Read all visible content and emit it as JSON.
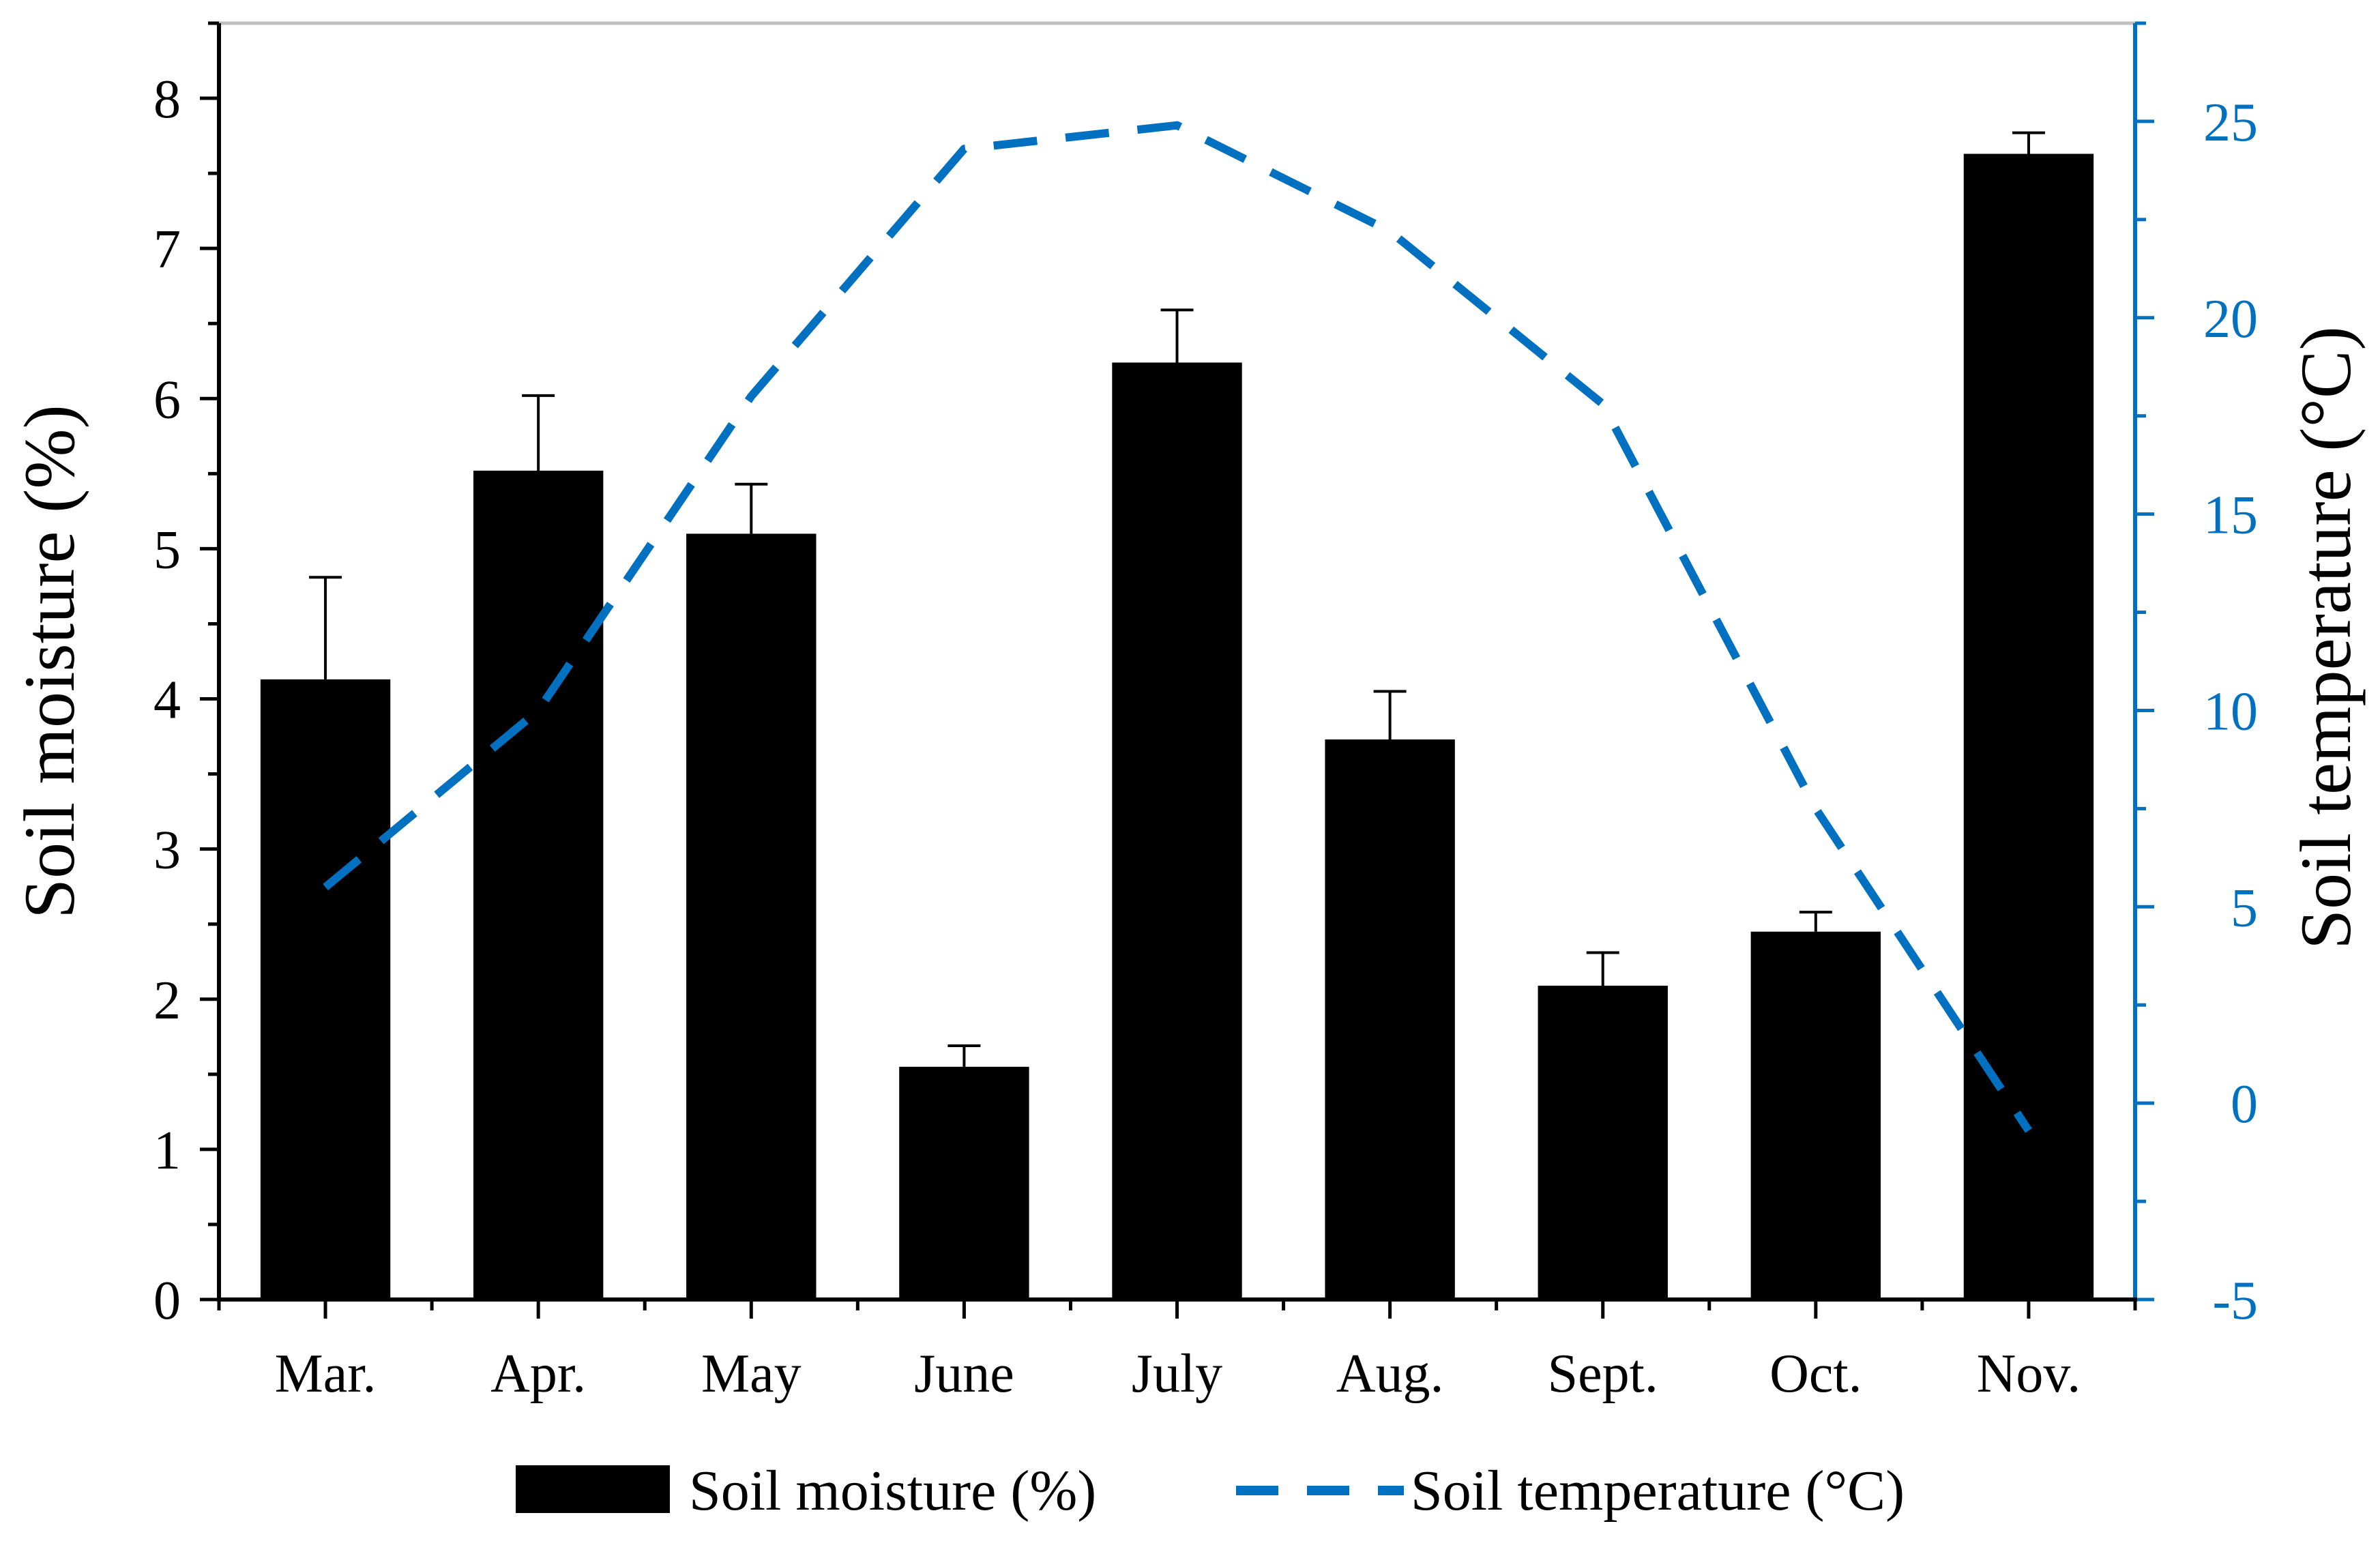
{
  "chart_data": {
    "type": "bar",
    "title": "",
    "categories": [
      "Mar.",
      "Apr.",
      "May",
      "June",
      "July",
      "Aug.",
      "Sept.",
      "Oct.",
      "Nov."
    ],
    "series": [
      {
        "name": "Soil moisture (%)",
        "type": "bar",
        "axis": "left",
        "values": [
          4.13,
          5.52,
          5.1,
          1.55,
          6.24,
          3.73,
          2.09,
          2.45,
          7.63
        ],
        "errors": [
          0.68,
          0.5,
          0.33,
          0.14,
          0.35,
          0.32,
          0.22,
          0.13,
          0.14
        ],
        "color": "#000000"
      },
      {
        "name": "Soil temperature (°C)",
        "type": "line",
        "style": "dashed",
        "axis": "right",
        "values": [
          5.5,
          10.0,
          18.0,
          24.3,
          24.9,
          22.2,
          17.8,
          7.5,
          -0.7
        ],
        "color": "#0070C0"
      }
    ],
    "xlabel": "",
    "ylabel": "Soil moisture (%)",
    "ylabel_right": "Soil temperature (°C)",
    "ylim": [
      0,
      8.5
    ],
    "yticks": [
      0,
      1,
      2,
      3,
      4,
      5,
      6,
      7,
      8
    ],
    "ylim_right": [
      -5,
      27.5
    ],
    "yticks_right": [
      -5,
      0,
      5,
      10,
      15,
      20,
      25
    ],
    "grid": false,
    "legend": "bottom"
  },
  "colors": {
    "bar": "#000000",
    "line": "#0070C0",
    "right_axis": "#0070C0",
    "frame_top": "#bfbfbf"
  },
  "legend": {
    "moisture_label": "Soil moisture (%)",
    "temperature_label": "Soil temperature (°C)"
  }
}
